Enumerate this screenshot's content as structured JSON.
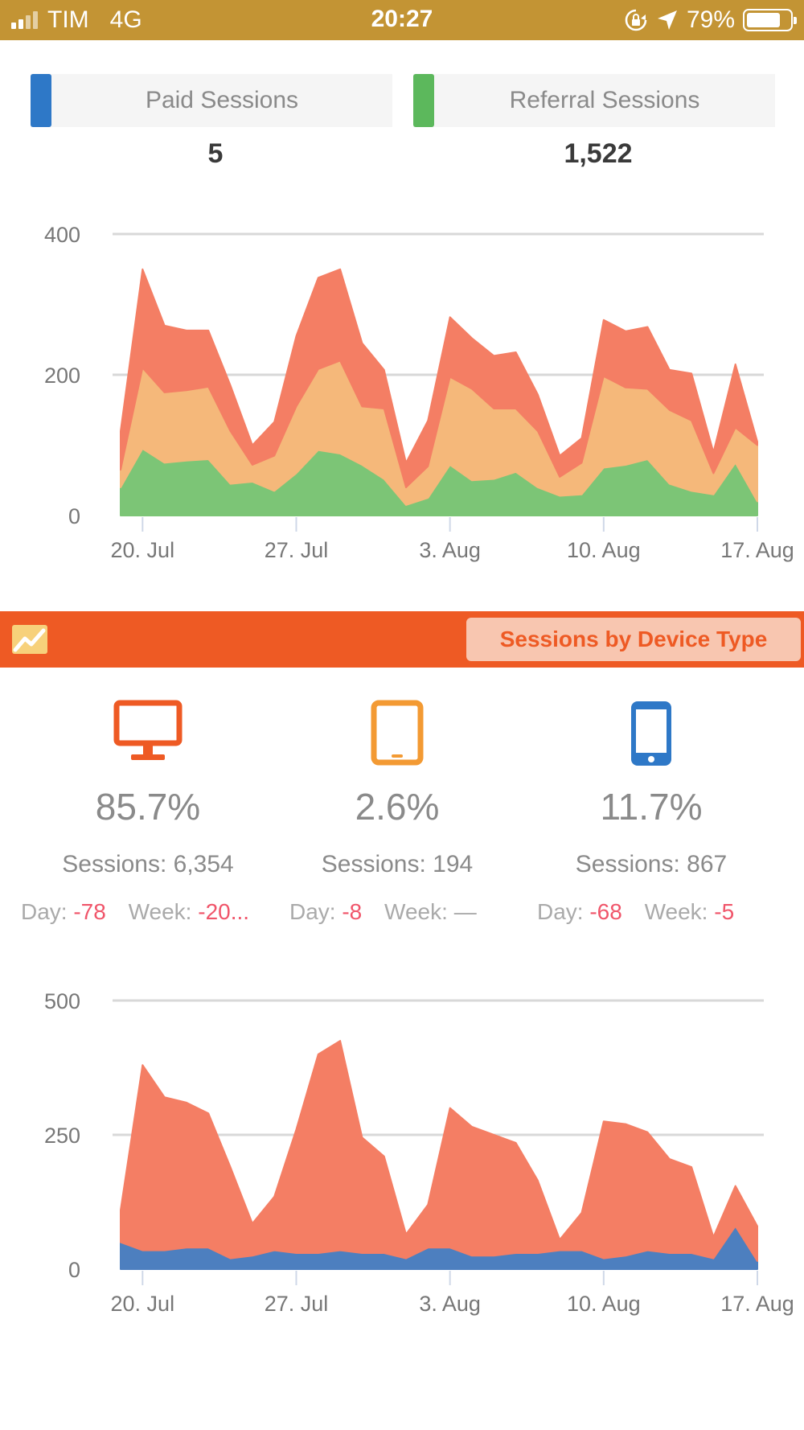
{
  "status_bar": {
    "carrier": "TIM",
    "network": "4G",
    "time": "20:27",
    "battery": "79%",
    "battery_level": 0.79
  },
  "metrics": [
    {
      "label": "Paid Sessions",
      "value": "5",
      "color": "#2e78c7"
    },
    {
      "label": "Referral Sessions",
      "value": "1,522",
      "color": "#5cb85c"
    }
  ],
  "chart_data": [
    {
      "type": "area",
      "stacked": true,
      "ylim": [
        0,
        400
      ],
      "yticks": [
        "400",
        "200",
        "0"
      ],
      "xticks": [
        "20. Jul",
        "27. Jul",
        "3. Aug",
        "10. Aug",
        "17. Aug"
      ],
      "grid": true,
      "series": [
        {
          "color": "#7cc576",
          "values": [
            40,
            95,
            75,
            78,
            80,
            45,
            48,
            35,
            60,
            93,
            88,
            72,
            52,
            15,
            25,
            72,
            50,
            52,
            62,
            40,
            28,
            30,
            68,
            72,
            80,
            45,
            35,
            30,
            75,
            20
          ]
        },
        {
          "color": "#f5b87a",
          "values": [
            25,
            115,
            100,
            100,
            103,
            75,
            24,
            50,
            95,
            115,
            132,
            83,
            100,
            25,
            45,
            125,
            130,
            100,
            90,
            80,
            27,
            45,
            130,
            110,
            100,
            105,
            100,
            30,
            50,
            80
          ]
        },
        {
          "color": "#f47e64",
          "values": [
            55,
            140,
            95,
            85,
            80,
            65,
            28,
            48,
            100,
            130,
            130,
            90,
            55,
            35,
            65,
            85,
            72,
            75,
            80,
            52,
            30,
            35,
            80,
            80,
            88,
            57,
            67,
            30,
            90,
            5
          ]
        }
      ]
    },
    {
      "type": "area",
      "stacked": true,
      "ylim": [
        0,
        500
      ],
      "yticks": [
        "500",
        "250",
        "0"
      ],
      "xticks": [
        "20. Jul",
        "27. Jul",
        "3. Aug",
        "10. Aug",
        "17. Aug"
      ],
      "grid": true,
      "series": [
        {
          "color": "#4d7fbf",
          "values": [
            50,
            35,
            35,
            40,
            40,
            20,
            25,
            35,
            30,
            30,
            35,
            30,
            30,
            20,
            40,
            40,
            25,
            25,
            30,
            30,
            35,
            35,
            20,
            25,
            35,
            30,
            30,
            20,
            80,
            15
          ]
        },
        {
          "color": "#f47e64",
          "values": [
            60,
            345,
            285,
            270,
            250,
            170,
            60,
            100,
            230,
            370,
            390,
            215,
            180,
            45,
            80,
            260,
            240,
            225,
            205,
            135,
            20,
            70,
            255,
            245,
            220,
            175,
            160,
            40,
            75,
            65
          ]
        }
      ]
    }
  ],
  "section": {
    "title": "Sessions by Device Type"
  },
  "devices": [
    {
      "icon": "desktop-icon",
      "color": "#ee5a24",
      "percent": "85.7%",
      "sessions": "Sessions: 6,354",
      "day_label": "Day:",
      "day_value": "-78",
      "week_label": "Week:",
      "week_value": "-20..."
    },
    {
      "icon": "tablet-icon",
      "color": "#f39a33",
      "percent": "2.6%",
      "sessions": "Sessions: 194",
      "day_label": "Day:",
      "day_value": "-8",
      "week_label": "Week:",
      "week_value": "—"
    },
    {
      "icon": "mobile-icon",
      "color": "#2e78c7",
      "percent": "11.7%",
      "sessions": "Sessions: 867",
      "day_label": "Day:",
      "day_value": "-68",
      "week_label": "Week:",
      "week_value": "-5"
    }
  ]
}
